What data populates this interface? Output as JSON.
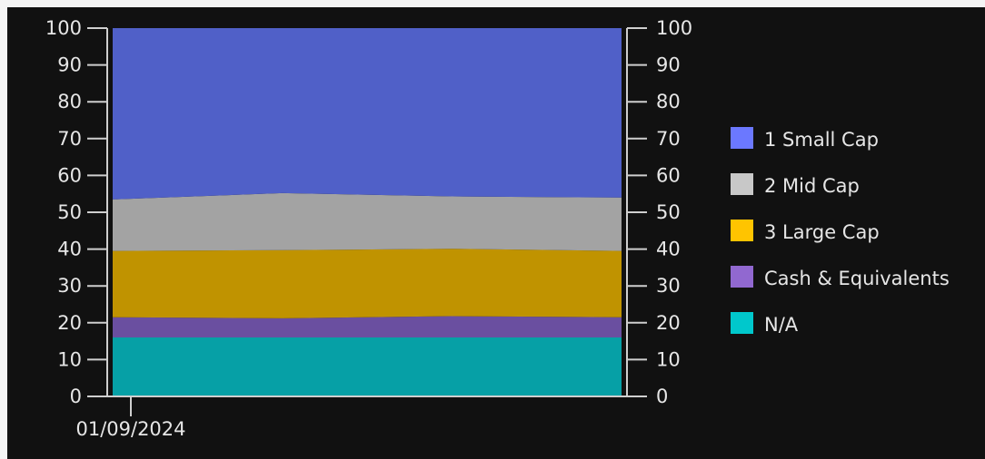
{
  "chart_data": {
    "type": "area",
    "stacked": true,
    "x": [
      "01/09/2024",
      "",
      "",
      ""
    ],
    "x_tick_labels": [
      "01/09/2024"
    ],
    "ylim": [
      0,
      100
    ],
    "y_ticks": [
      0,
      10,
      20,
      30,
      40,
      50,
      60,
      70,
      80,
      90,
      100
    ],
    "secondary_y_axis": true,
    "legend_position": "right",
    "grid": false,
    "background": "#111111",
    "series": [
      {
        "name": "N/A",
        "color": "#06a0a6",
        "values": [
          16,
          16,
          16,
          16
        ]
      },
      {
        "name": "Cash & Equivalents",
        "color": "#6a4fa0",
        "values": [
          5.5,
          5.2,
          5.8,
          5.5
        ]
      },
      {
        "name": "3 Large Cap",
        "color": "#c09300",
        "values": [
          18,
          18.5,
          18.3,
          18
        ]
      },
      {
        "name": "2 Mid Cap",
        "color": "#a3a3a3",
        "values": [
          14,
          15.5,
          14.2,
          14.5
        ]
      },
      {
        "name": "1 Small Cap",
        "color": "#5060c8",
        "values": [
          46.5,
          44.8,
          45.7,
          46
        ]
      }
    ],
    "legend": [
      {
        "label": "1 Small Cap",
        "color": "#6b78ff"
      },
      {
        "label": "2 Mid Cap",
        "color": "#c8c8c8"
      },
      {
        "label": "3 Large Cap",
        "color": "#ffc400"
      },
      {
        "label": "Cash & Equivalents",
        "color": "#9168d0"
      },
      {
        "label": "N/A",
        "color": "#00c8cc"
      }
    ]
  }
}
